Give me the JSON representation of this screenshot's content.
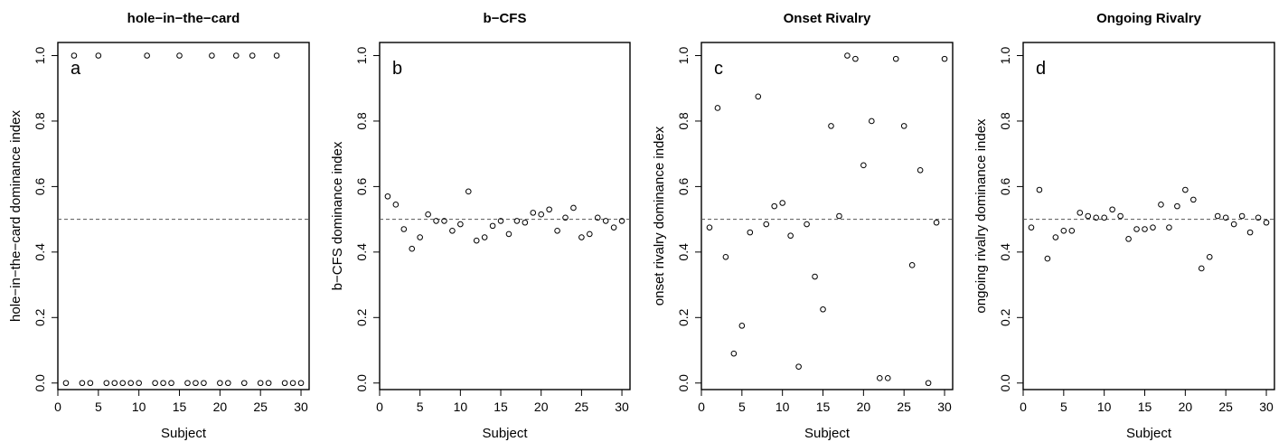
{
  "chart_data": [
    {
      "type": "scatter",
      "title": "hole−in−the−card",
      "panel_letter": "a",
      "xlabel": "Subject",
      "ylabel": "hole−in−the−card dominance index",
      "xlim": [
        0,
        31
      ],
      "ylim": [
        -0.02,
        1.04
      ],
      "xticks": [
        "0",
        "5",
        "10",
        "15",
        "20",
        "25",
        "30"
      ],
      "yticks": [
        "0.0",
        "0.2",
        "0.4",
        "0.6",
        "0.8",
        "1.0"
      ],
      "reference_line": 0.5,
      "x": [
        1,
        2,
        3,
        4,
        5,
        6,
        7,
        8,
        9,
        10,
        11,
        12,
        13,
        14,
        15,
        16,
        17,
        18,
        19,
        20,
        21,
        22,
        23,
        24,
        25,
        26,
        27,
        28,
        29,
        30
      ],
      "y": [
        0,
        1,
        0,
        0,
        1,
        0,
        0,
        0,
        0,
        0,
        1,
        0,
        0,
        0,
        1,
        0,
        0,
        0,
        1,
        0,
        0,
        1,
        0,
        1,
        0,
        0,
        1,
        0,
        0,
        0
      ]
    },
    {
      "type": "scatter",
      "title": "b−CFS",
      "panel_letter": "b",
      "xlabel": "Subject",
      "ylabel": "b−CFS dominance index",
      "xlim": [
        0,
        31
      ],
      "ylim": [
        -0.02,
        1.04
      ],
      "xticks": [
        "0",
        "5",
        "10",
        "15",
        "20",
        "25",
        "30"
      ],
      "yticks": [
        "0.0",
        "0.2",
        "0.4",
        "0.6",
        "0.8",
        "1.0"
      ],
      "reference_line": 0.5,
      "x": [
        1,
        2,
        3,
        4,
        5,
        6,
        7,
        8,
        9,
        10,
        11,
        12,
        13,
        14,
        15,
        16,
        17,
        18,
        19,
        20,
        21,
        22,
        23,
        24,
        25,
        26,
        27,
        28,
        29,
        30
      ],
      "y": [
        0.57,
        0.545,
        0.47,
        0.41,
        0.445,
        0.515,
        0.495,
        0.495,
        0.465,
        0.485,
        0.585,
        0.435,
        0.445,
        0.48,
        0.495,
        0.455,
        0.495,
        0.49,
        0.52,
        0.515,
        0.53,
        0.465,
        0.505,
        0.535,
        0.445,
        0.455,
        0.505,
        0.495,
        0.475,
        0.495
      ]
    },
    {
      "type": "scatter",
      "title": "Onset Rivalry",
      "panel_letter": "c",
      "xlabel": "Subject",
      "ylabel": "onset rivalry dominance index",
      "xlim": [
        0,
        31
      ],
      "ylim": [
        -0.02,
        1.04
      ],
      "xticks": [
        "0",
        "5",
        "10",
        "15",
        "20",
        "25",
        "30"
      ],
      "yticks": [
        "0.0",
        "0.2",
        "0.4",
        "0.6",
        "0.8",
        "1.0"
      ],
      "reference_line": 0.5,
      "x": [
        1,
        2,
        3,
        4,
        5,
        6,
        7,
        8,
        9,
        10,
        11,
        12,
        13,
        14,
        15,
        16,
        17,
        18,
        19,
        20,
        21,
        22,
        23,
        24,
        25,
        26,
        27,
        28,
        29,
        30
      ],
      "y": [
        0.475,
        0.84,
        0.385,
        0.09,
        0.175,
        0.46,
        0.875,
        0.485,
        0.54,
        0.55,
        0.45,
        0.05,
        0.485,
        0.325,
        0.225,
        0.785,
        0.51,
        1.0,
        0.99,
        0.665,
        0.8,
        0.015,
        0.015,
        0.99,
        0.785,
        0.36,
        0.65,
        0.0,
        0.49,
        0.99
      ]
    },
    {
      "type": "scatter",
      "title": "Ongoing Rivalry",
      "panel_letter": "d",
      "xlabel": "Subject",
      "ylabel": "ongoing rivalry dominance index",
      "xlim": [
        0,
        31
      ],
      "ylim": [
        -0.02,
        1.04
      ],
      "xticks": [
        "0",
        "5",
        "10",
        "15",
        "20",
        "25",
        "30"
      ],
      "yticks": [
        "0.0",
        "0.2",
        "0.4",
        "0.6",
        "0.8",
        "1.0"
      ],
      "reference_line": 0.5,
      "x": [
        1,
        2,
        3,
        4,
        5,
        6,
        7,
        8,
        9,
        10,
        11,
        12,
        13,
        14,
        15,
        16,
        17,
        18,
        19,
        20,
        21,
        22,
        23,
        24,
        25,
        26,
        27,
        28,
        29,
        30
      ],
      "y": [
        0.475,
        0.59,
        0.38,
        0.445,
        0.465,
        0.465,
        0.52,
        0.51,
        0.505,
        0.505,
        0.53,
        0.51,
        0.44,
        0.47,
        0.47,
        0.475,
        0.545,
        0.475,
        0.54,
        0.59,
        0.56,
        0.35,
        0.385,
        0.51,
        0.505,
        0.485,
        0.51,
        0.46,
        0.505,
        0.49
      ]
    }
  ]
}
